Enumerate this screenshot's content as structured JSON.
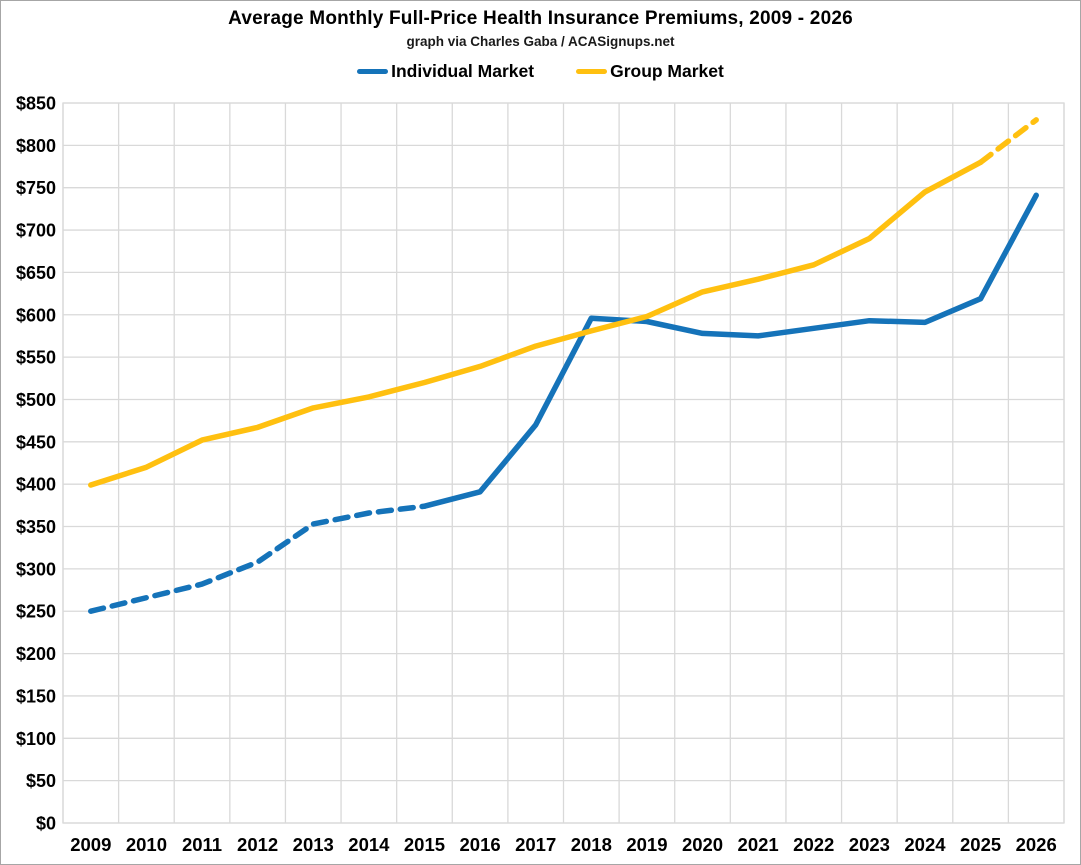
{
  "page": {
    "title": "Average Monthly Full-Price Health Insurance Premiums, 2009 - 2026",
    "subtitle": "graph via Charles Gaba / ACASignups.net"
  },
  "colors": {
    "individual_line": "#1573B9",
    "group_line": "#FFC010",
    "gridline": "#D9D9D9",
    "text": "#000000",
    "background": "#FFFFFF"
  },
  "chart_data": {
    "type": "line",
    "title": "Average Monthly Full-Price Health Insurance Premiums, 2009 - 2026",
    "subtitle": "graph via Charles Gaba / ACASignups.net",
    "categories": [
      "2009",
      "2010",
      "2011",
      "2012",
      "2013",
      "2014",
      "2015",
      "2016",
      "2017",
      "2018",
      "2019",
      "2020",
      "2021",
      "2022",
      "2023",
      "2024",
      "2025",
      "2026"
    ],
    "series": [
      {
        "name": "Individual Market",
        "color": "#1573B9",
        "values": [
          250,
          266,
          282,
          308,
          353,
          366,
          374,
          391,
          470,
          596,
          592,
          578,
          575,
          584,
          593,
          591,
          619,
          741
        ],
        "dashed_range": [
          0,
          6
        ],
        "dashed_note": "line drawn dashed from 2009 through 2015"
      },
      {
        "name": "Group Market",
        "color": "#FFC010",
        "values": [
          399,
          420,
          452,
          467,
          490,
          503,
          520,
          539,
          563,
          581,
          598,
          627,
          642,
          659,
          690,
          745,
          780,
          830
        ],
        "dashed_range": [
          16,
          17
        ],
        "dashed_note": "line drawn dashed from 2025 through 2026 (projection)"
      }
    ],
    "xlabel": "",
    "ylabel": "",
    "ylim": [
      0,
      850
    ],
    "y_tick_step": 50,
    "y_tick_prefix": "$",
    "grid": true,
    "legend_position": "top"
  }
}
